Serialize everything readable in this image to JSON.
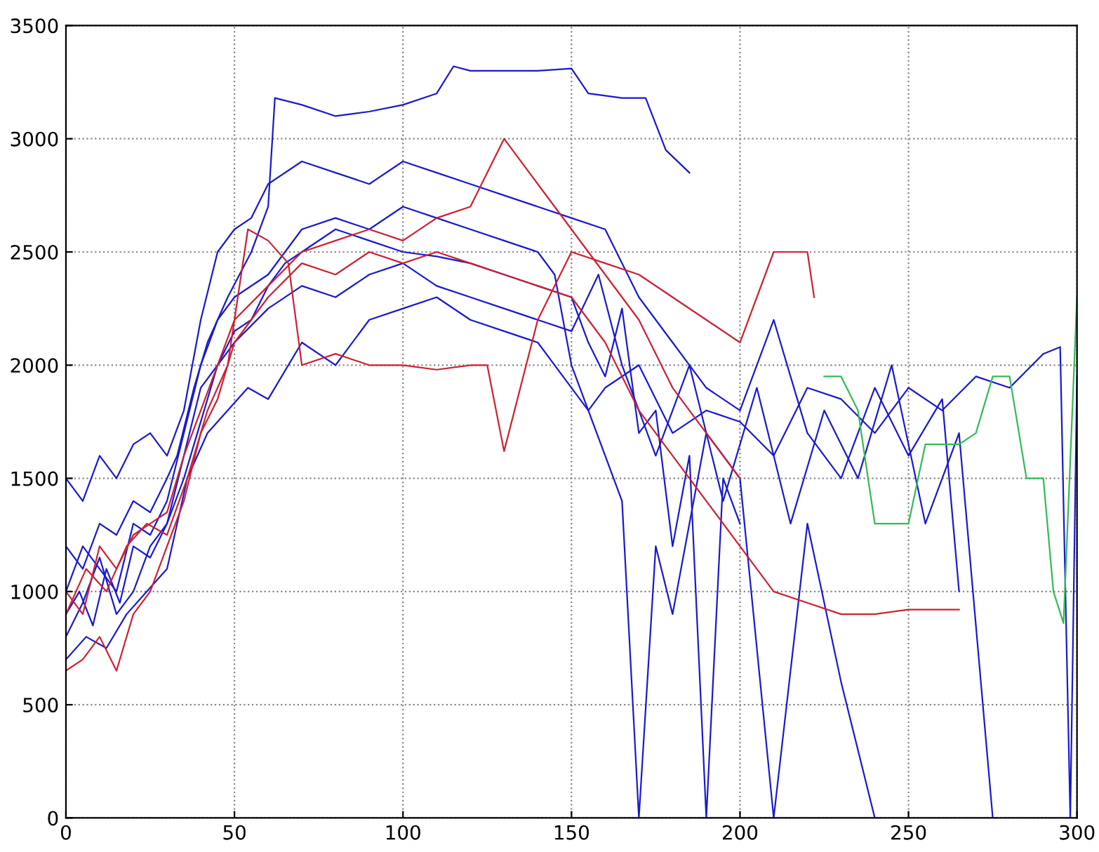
{
  "chart_data": {
    "type": "line",
    "xlim": [
      0,
      300
    ],
    "ylim": [
      0,
      3500
    ],
    "xticks": [
      0,
      50,
      100,
      150,
      200,
      250,
      300
    ],
    "yticks": [
      0,
      500,
      1000,
      1500,
      2000,
      2500,
      3000,
      3500
    ],
    "grid": true,
    "line_style": "solid",
    "marker": "none",
    "series": [
      {
        "color": "#1a1acc",
        "x": [
          0,
          5,
          10,
          15,
          20,
          25,
          30,
          33,
          38,
          42,
          48,
          55,
          60,
          62,
          70,
          80,
          90,
          100,
          110,
          115,
          120,
          130,
          140,
          150,
          155,
          165,
          172,
          178,
          185
        ],
        "values": [
          1200,
          1100,
          1300,
          1250,
          1400,
          1350,
          1500,
          1600,
          1900,
          2100,
          2300,
          2500,
          2700,
          3180,
          3150,
          3100,
          3120,
          3150,
          3200,
          3320,
          3300,
          3300,
          3300,
          3310,
          3200,
          3180,
          3180,
          2950,
          2850
        ]
      },
      {
        "color": "#1a1acc",
        "x": [
          0,
          4,
          8,
          12,
          16,
          20,
          25,
          30,
          35,
          40,
          45,
          50,
          55,
          60,
          65,
          70,
          80,
          90,
          100,
          110,
          120,
          130,
          140,
          150,
          155,
          160,
          165,
          170,
          175,
          180,
          185,
          190,
          195,
          200
        ],
        "values": [
          900,
          1000,
          850,
          1100,
          950,
          1200,
          1150,
          1300,
          1600,
          1900,
          2000,
          2150,
          2200,
          2350,
          2450,
          2500,
          2600,
          2550,
          2500,
          2480,
          2450,
          2400,
          2350,
          2300,
          2100,
          1950,
          2250,
          1700,
          1800,
          1200,
          1600,
          0,
          1500,
          1300
        ]
      },
      {
        "color": "#1a1acc",
        "x": [
          0,
          5,
          10,
          15,
          20,
          25,
          30,
          35,
          40,
          45,
          50,
          55,
          60,
          70,
          80,
          90,
          100,
          110,
          120,
          130,
          140,
          150,
          160,
          170,
          180,
          190,
          200,
          210,
          220,
          230,
          240,
          250,
          260,
          265
        ],
        "values": [
          1500,
          1400,
          1600,
          1500,
          1650,
          1700,
          1600,
          1800,
          2200,
          2500,
          2600,
          2650,
          2800,
          2900,
          2850,
          2800,
          2900,
          2850,
          2800,
          2750,
          2700,
          2650,
          2600,
          2300,
          2100,
          1900,
          1800,
          2200,
          1700,
          1500,
          1900,
          1600,
          1850,
          1000
        ]
      },
      {
        "color": "#1a1acc",
        "x": [
          0,
          6,
          12,
          18,
          24,
          30,
          36,
          42,
          48,
          54,
          60,
          70,
          80,
          90,
          100,
          110,
          120,
          130,
          140,
          150,
          155,
          160,
          165,
          170,
          175,
          180,
          190,
          200,
          210,
          220,
          230,
          240
        ],
        "values": [
          700,
          800,
          750,
          900,
          1000,
          1100,
          1500,
          1700,
          1800,
          1900,
          1850,
          2100,
          2000,
          2200,
          2250,
          2300,
          2200,
          2150,
          2100,
          1900,
          1800,
          1600,
          1400,
          0,
          1200,
          900,
          1700,
          1500,
          0,
          1300,
          600,
          0
        ]
      },
      {
        "color": "#1a1acc",
        "x": [
          0,
          5,
          10,
          15,
          20,
          25,
          30,
          35,
          40,
          45,
          50,
          60,
          70,
          80,
          90,
          100,
          110,
          120,
          130,
          140,
          145,
          150,
          155,
          160,
          170,
          180,
          190,
          200,
          210,
          220,
          230,
          240,
          250,
          260,
          270,
          280,
          290,
          295,
          298,
          300
        ],
        "values": [
          1000,
          1200,
          1100,
          1000,
          1300,
          1250,
          1400,
          1700,
          2000,
          2200,
          2300,
          2400,
          2600,
          2650,
          2600,
          2700,
          2650,
          2600,
          2550,
          2500,
          2400,
          2000,
          1800,
          1900,
          2000,
          1700,
          1800,
          1750,
          1600,
          1900,
          1850,
          1700,
          1900,
          1800,
          1950,
          1900,
          2050,
          2080,
          0,
          1950
        ]
      },
      {
        "color": "#1a1acc",
        "x": [
          0,
          5,
          10,
          15,
          20,
          25,
          30,
          35,
          40,
          45,
          50,
          60,
          70,
          80,
          90,
          100,
          110,
          120,
          130,
          140,
          150,
          158,
          165,
          175,
          185,
          195,
          205,
          215,
          225,
          235,
          245,
          255,
          265,
          275
        ],
        "values": [
          800,
          950,
          1150,
          900,
          1000,
          1200,
          1300,
          1500,
          1750,
          2000,
          2100,
          2250,
          2350,
          2300,
          2400,
          2450,
          2350,
          2300,
          2250,
          2200,
          2150,
          2400,
          2000,
          1600,
          2000,
          1400,
          1900,
          1300,
          1800,
          1500,
          2000,
          1300,
          1700,
          0
        ]
      },
      {
        "color": "#cc2233",
        "x": [
          0,
          5,
          10,
          15,
          20,
          25,
          30,
          35,
          40,
          45,
          50,
          55,
          60,
          70,
          80,
          90,
          100,
          110,
          120,
          130,
          140,
          150,
          160,
          170,
          180,
          190,
          200,
          210,
          220,
          230,
          240,
          250,
          265
        ],
        "values": [
          650,
          700,
          800,
          650,
          900,
          1000,
          1200,
          1400,
          1700,
          1850,
          2100,
          2200,
          2300,
          2450,
          2400,
          2500,
          2450,
          2500,
          2450,
          2400,
          2350,
          2300,
          2100,
          1800,
          1600,
          1400,
          1200,
          1000,
          950,
          900,
          900,
          920,
          920
        ]
      },
      {
        "color": "#cc2233",
        "x": [
          0,
          6,
          12,
          18,
          24,
          30,
          36,
          42,
          48,
          54,
          60,
          66,
          70,
          80,
          90,
          100,
          110,
          120,
          125,
          130,
          140,
          150,
          160,
          170,
          180,
          190,
          200,
          210,
          220,
          222
        ],
        "values": [
          900,
          1100,
          1000,
          1200,
          1300,
          1250,
          1500,
          1800,
          2000,
          2600,
          2550,
          2450,
          2000,
          2050,
          2000,
          2000,
          1980,
          2000,
          2000,
          1620,
          2200,
          2500,
          2450,
          2400,
          2300,
          2200,
          2100,
          2500,
          2500,
          2300
        ]
      },
      {
        "color": "#cc2233",
        "x": [
          0,
          5,
          10,
          15,
          20,
          25,
          30,
          35,
          40,
          50,
          60,
          70,
          80,
          90,
          100,
          110,
          120,
          130,
          140,
          150,
          160,
          170,
          180,
          190,
          200
        ],
        "values": [
          1000,
          900,
          1200,
          1100,
          1250,
          1300,
          1350,
          1600,
          1800,
          2200,
          2350,
          2500,
          2550,
          2600,
          2550,
          2650,
          2700,
          3000,
          2800,
          2600,
          2400,
          2200,
          1900,
          1700,
          1500
        ]
      },
      {
        "color": "#33bb55",
        "x": [
          225,
          230,
          235,
          240,
          245,
          250,
          255,
          260,
          265,
          270,
          275,
          280,
          285,
          290,
          293,
          296,
          300
        ],
        "values": [
          1950,
          1950,
          1800,
          1300,
          1300,
          1300,
          1650,
          1650,
          1650,
          1700,
          1950,
          1950,
          1500,
          1500,
          1000,
          860,
          2300
        ]
      }
    ]
  }
}
